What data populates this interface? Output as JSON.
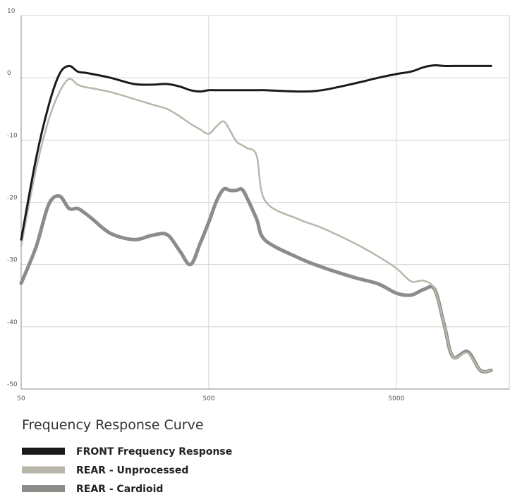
{
  "chart_data": {
    "type": "line",
    "title": "Frequency Response Curve",
    "x": [
      50,
      60,
      70,
      80,
      90,
      100,
      110,
      120,
      150,
      200,
      250,
      300,
      350,
      400,
      450,
      500,
      550,
      600,
      650,
      700,
      750,
      800,
      900,
      1000,
      1500,
      2000,
      3000,
      4000,
      5000,
      6000,
      7000,
      8000,
      9000,
      10000,
      12000,
      14000,
      16000
    ],
    "series": [
      {
        "name": "FRONT Frequency Response",
        "color": "#1a1a1a",
        "values": [
          -26,
          -13,
          -4.5,
          0.6,
          1.9,
          1,
          0.8,
          0.6,
          0,
          -1,
          -1.1,
          -1,
          -1.4,
          -2,
          -2.2,
          -2,
          -2,
          -2,
          -2,
          -2,
          -2,
          -2,
          -2,
          -2,
          -2.2,
          -2,
          -0.9,
          0,
          0.6,
          1,
          1.7,
          2,
          1.9,
          1.9,
          1.9,
          1.9,
          1.9
        ]
      },
      {
        "name": "REAR - Unprocessed",
        "color": "#b9b6aa",
        "values": [
          -27,
          -14.7,
          -6.8,
          -2.3,
          -0.2,
          -1.1,
          -1.5,
          -1.7,
          -2.3,
          -3.4,
          -4.3,
          -5,
          -6.2,
          -7.4,
          -8.3,
          -9,
          -7.8,
          -7,
          -8.5,
          -10.2,
          -10.8,
          -11.3,
          -12.5,
          -19.8,
          -22.7,
          -24.1,
          -26.6,
          -28.7,
          -30.6,
          -32.7,
          -32.6,
          -34,
          -39.7,
          -44.8,
          -44.2,
          -47,
          -47
        ]
      },
      {
        "name": "REAR - Cardioid",
        "color": "#8b8d88",
        "values": [
          -33,
          -27.2,
          -20.4,
          -19,
          -21,
          -21,
          -21.8,
          -22.7,
          -25,
          -26,
          -25.3,
          -25.2,
          -27.8,
          -30,
          -26.6,
          -23.2,
          -19.8,
          -17.9,
          -18.1,
          -18.1,
          -17.9,
          -19.3,
          -22.7,
          -26.1,
          -28.9,
          -30.4,
          -32.1,
          -33.1,
          -34.6,
          -34.9,
          -34,
          -34,
          -39.7,
          -44.8,
          -44,
          -47,
          -47
        ]
      }
    ],
    "xlim": [
      50,
      20000
    ],
    "xticks": [
      50,
      500,
      5000
    ],
    "xlog": true,
    "ylim": [
      -50,
      10
    ],
    "yticks": [
      10,
      0,
      -10,
      -20,
      -30,
      -40,
      -50
    ],
    "grid": true
  }
}
